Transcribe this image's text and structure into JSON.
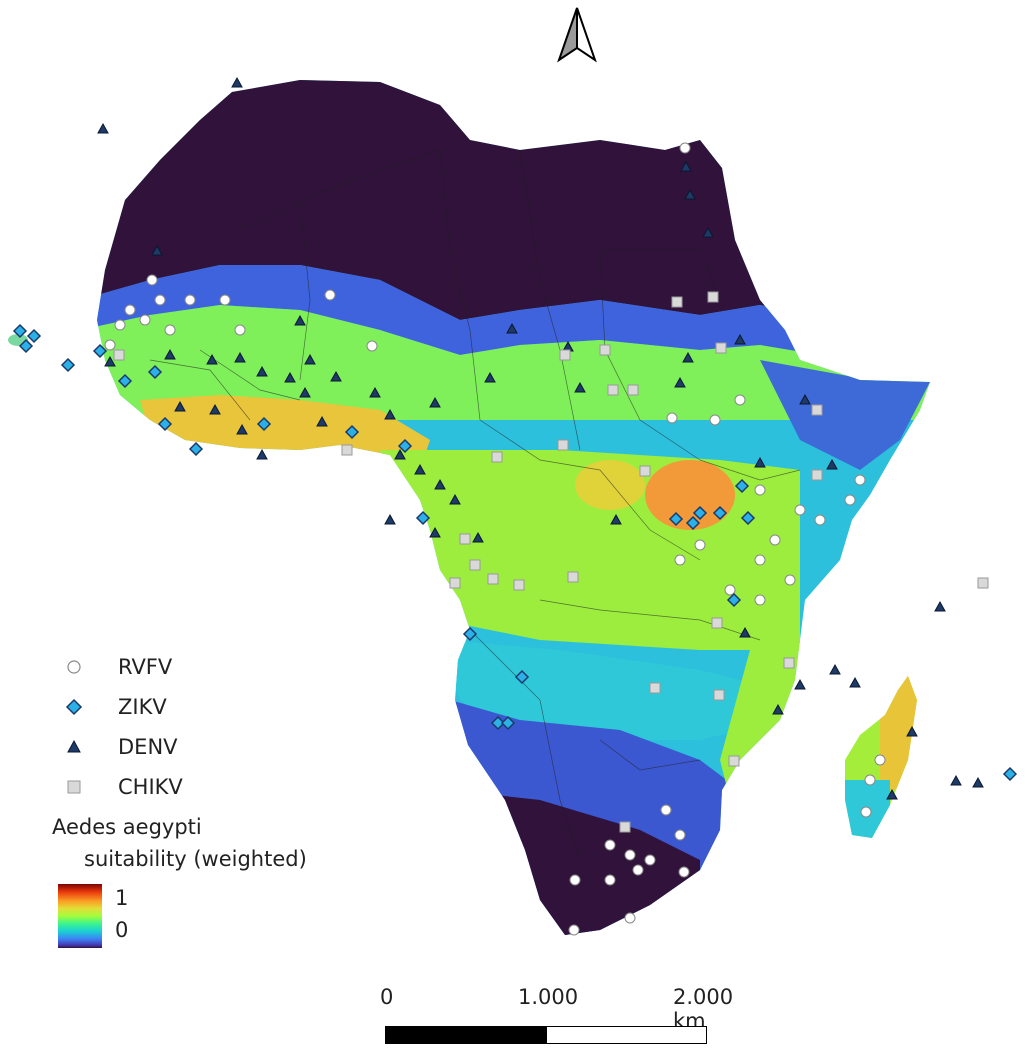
{
  "map": {
    "colors": {
      "ocean": "#ffffff",
      "desert": "#30123b",
      "low": "#3e5cd8",
      "mid": "#30c8e0",
      "high": "#a6f33a",
      "peak": "#f2a93a",
      "border": "#1f1f1f"
    }
  },
  "legend": {
    "items": [
      {
        "label": "RVFV",
        "symbol": "circle-marker-icon"
      },
      {
        "label": "ZIKV",
        "symbol": "diamond-marker-icon"
      },
      {
        "label": "DENV",
        "symbol": "triangle-marker-icon"
      },
      {
        "label": "CHIKV",
        "symbol": "square-marker-icon"
      }
    ],
    "title_line1": "Aedes aegypti",
    "title_line2": "suitability (weighted)",
    "ramp_max": "1",
    "ramp_min": "0"
  },
  "scale": {
    "label_0": "0",
    "label_1": "1.000",
    "label_2": "2.000 km"
  },
  "north_arrow": {
    "icon": "north-arrow-icon"
  }
}
